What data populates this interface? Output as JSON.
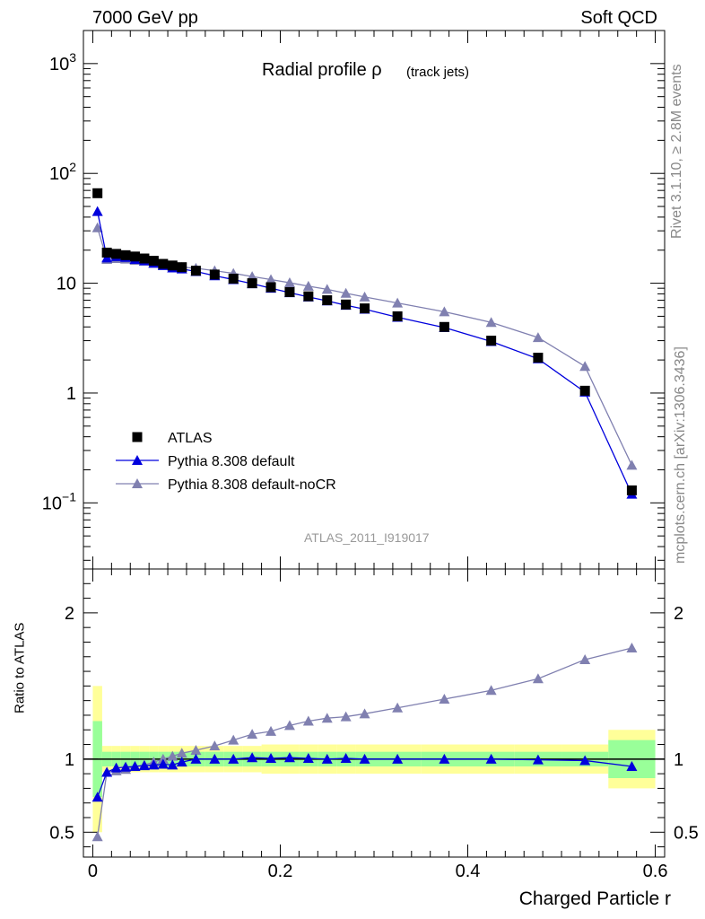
{
  "header": {
    "left": "7000 GeV pp",
    "right": "Soft QCD"
  },
  "title": {
    "main": "Radial profile ρ",
    "sub": "(track jets)"
  },
  "side_labels": {
    "rivet": "Rivet 3.1.10, ≥ 2.8M events",
    "source": "mcplots.cern.ch [arXiv:1306.3436]"
  },
  "analysis_id": "ATLAS_2011_I919017",
  "colors": {
    "data": "#000000",
    "default": "#0000dd",
    "nocr": "#8080b0",
    "band_inner": "#99ff99",
    "band_outer": "#ffff99"
  },
  "chart_data": [
    {
      "type": "scatter",
      "yscale": "log",
      "ylim": [
        0.025,
        2000
      ],
      "xlim": [
        -0.01,
        0.61
      ],
      "y_tick_labels": [
        "10^-1",
        "1",
        "10",
        "10^2",
        "10^3"
      ],
      "legend": {
        "position": "bottom-left",
        "entries": [
          "ATLAS",
          "Pythia 8.308 default",
          "Pythia 8.308 default-noCR"
        ]
      },
      "x": [
        0.005,
        0.015,
        0.025,
        0.035,
        0.045,
        0.055,
        0.065,
        0.075,
        0.085,
        0.095,
        0.11,
        0.13,
        0.15,
        0.17,
        0.19,
        0.21,
        0.23,
        0.25,
        0.27,
        0.29,
        0.325,
        0.375,
        0.425,
        0.475,
        0.525,
        0.575
      ],
      "series": [
        {
          "name": "ATLAS",
          "marker": "square",
          "values": [
            66,
            19,
            18.5,
            18,
            17.5,
            16.8,
            16,
            15,
            14.5,
            14,
            13,
            12,
            11,
            10,
            9.2,
            8.3,
            7.6,
            7.0,
            6.4,
            5.9,
            5.0,
            4.0,
            3.0,
            2.1,
            1.05,
            0.13
          ]
        },
        {
          "name": "Pythia 8.308 default",
          "marker": "triangle",
          "values": [
            45,
            17,
            17.5,
            17.2,
            16.5,
            16,
            15.2,
            14.5,
            13.8,
            13.5,
            12.8,
            11.7,
            10.8,
            9.9,
            9.0,
            8.2,
            7.5,
            6.9,
            6.3,
            5.8,
            4.9,
            3.95,
            2.95,
            2.05,
            1.02,
            0.12
          ]
        },
        {
          "name": "Pythia 8.308 default-noCR",
          "marker": "triangle",
          "values": [
            32,
            16.5,
            16.8,
            16.6,
            16.2,
            15.9,
            15.3,
            14.7,
            14.3,
            14.0,
            13.7,
            13.0,
            12.3,
            11.5,
            10.8,
            10.1,
            9.4,
            8.8,
            8.1,
            7.5,
            6.6,
            5.5,
            4.4,
            3.2,
            1.75,
            0.22
          ]
        }
      ]
    },
    {
      "type": "line",
      "ylabel": "Ratio to ATLAS",
      "ylim": [
        0.33,
        2.3
      ],
      "xlim": [
        -0.01,
        0.61
      ],
      "x_ticks": [
        0,
        0.2,
        0.4,
        0.6
      ],
      "x_tick_labels": [
        "0",
        "0.2",
        "0.4",
        "0.6"
      ],
      "y_tick_labels": [
        "0.5",
        "1",
        "2"
      ],
      "xlabel": "Charged Particle r",
      "bins": [
        [
          0,
          0.01
        ],
        [
          0.01,
          0.02
        ],
        [
          0.02,
          0.03
        ],
        [
          0.03,
          0.04
        ],
        [
          0.04,
          0.05
        ],
        [
          0.05,
          0.06
        ],
        [
          0.06,
          0.07
        ],
        [
          0.07,
          0.08
        ],
        [
          0.08,
          0.09
        ],
        [
          0.09,
          0.1
        ],
        [
          0.1,
          0.12
        ],
        [
          0.12,
          0.14
        ],
        [
          0.14,
          0.16
        ],
        [
          0.16,
          0.18
        ],
        [
          0.18,
          0.2
        ],
        [
          0.2,
          0.22
        ],
        [
          0.22,
          0.24
        ],
        [
          0.24,
          0.26
        ],
        [
          0.26,
          0.28
        ],
        [
          0.28,
          0.3
        ],
        [
          0.3,
          0.35
        ],
        [
          0.35,
          0.4
        ],
        [
          0.4,
          0.45
        ],
        [
          0.45,
          0.5
        ],
        [
          0.5,
          0.55
        ],
        [
          0.55,
          0.6
        ]
      ],
      "band_inner": [
        0.26,
        0.05,
        0.05,
        0.05,
        0.05,
        0.05,
        0.05,
        0.05,
        0.05,
        0.05,
        0.05,
        0.05,
        0.05,
        0.05,
        0.05,
        0.05,
        0.05,
        0.05,
        0.05,
        0.05,
        0.05,
        0.05,
        0.05,
        0.05,
        0.05,
        0.13
      ],
      "band_outer": [
        0.5,
        0.09,
        0.09,
        0.09,
        0.09,
        0.09,
        0.09,
        0.09,
        0.09,
        0.09,
        0.09,
        0.09,
        0.09,
        0.09,
        0.1,
        0.1,
        0.1,
        0.1,
        0.1,
        0.1,
        0.1,
        0.1,
        0.1,
        0.1,
        0.1,
        0.2
      ],
      "x": [
        0.005,
        0.015,
        0.025,
        0.035,
        0.045,
        0.055,
        0.065,
        0.075,
        0.085,
        0.095,
        0.11,
        0.13,
        0.15,
        0.17,
        0.19,
        0.21,
        0.23,
        0.25,
        0.27,
        0.29,
        0.325,
        0.375,
        0.425,
        0.475,
        0.525,
        0.575
      ],
      "series": [
        {
          "name": "Pythia 8.308 default",
          "values": [
            0.74,
            0.91,
            0.94,
            0.945,
            0.95,
            0.955,
            0.96,
            0.965,
            0.96,
            0.98,
            1.0,
            1.0,
            1.0,
            1.01,
            1.005,
            1.01,
            1.005,
            1.0,
            1.005,
            1.0,
            1.0,
            1.0,
            1.0,
            0.995,
            0.99,
            0.95
          ]
        },
        {
          "name": "Pythia 8.308 default-noCR",
          "values": [
            0.47,
            0.91,
            0.92,
            0.93,
            0.95,
            0.96,
            0.98,
            1.0,
            1.02,
            1.04,
            1.06,
            1.09,
            1.13,
            1.17,
            1.19,
            1.23,
            1.26,
            1.28,
            1.29,
            1.31,
            1.35,
            1.41,
            1.47,
            1.55,
            1.68,
            1.76
          ]
        }
      ]
    }
  ]
}
